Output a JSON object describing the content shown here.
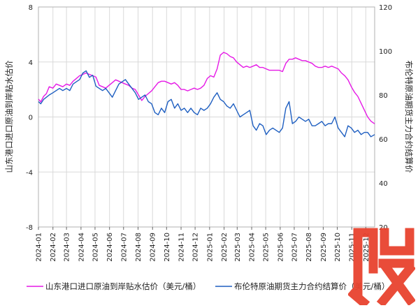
{
  "chart_data": {
    "type": "line",
    "title": "",
    "y_left": {
      "label": "山东港口进口原油到岸贴水估价",
      "range": [
        -8,
        8
      ],
      "ticks": [
        "8",
        "4",
        "0",
        "-4",
        "-8"
      ],
      "tick_values": [
        8,
        4,
        0,
        -4,
        -8
      ]
    },
    "y_right": {
      "label": "布伦特原油期货主力合约结算价",
      "range": [
        20,
        120
      ],
      "ticks": [
        "120",
        "100",
        "80",
        "60",
        "40",
        "20"
      ],
      "tick_values": [
        120,
        100,
        80,
        60,
        40,
        20
      ]
    },
    "x_ticks": [
      "2024-01",
      "2024-02",
      "2024-03",
      "2024-04",
      "2024-05",
      "2024-06",
      "2024-07",
      "2024-08",
      "2024-09",
      "2024-10",
      "2024-11",
      "2024-12",
      "2025-01",
      "2025-02",
      "2025-03",
      "2025-04",
      "2025-05",
      "2025-06",
      "2025-07",
      "2025-08",
      "2025-09",
      "2025-10",
      "2025-11",
      "2025-12"
    ],
    "x_range": [
      "2024-01",
      "2025-12-20"
    ],
    "grid": true,
    "legend_position": "bottom",
    "series": [
      {
        "name": "山东港口进口原油到岸贴水估价（美元/桶）",
        "axis": "left",
        "color": "#e619e6",
        "points": [
          [
            "2024-01-01",
            1.3
          ],
          [
            "2024-01-06",
            1.1
          ],
          [
            "2024-01-12",
            1.5
          ],
          [
            "2024-01-18",
            1.7
          ],
          [
            "2024-01-24",
            2.2
          ],
          [
            "2024-02-01",
            2.1
          ],
          [
            "2024-02-08",
            2.4
          ],
          [
            "2024-02-15",
            2.3
          ],
          [
            "2024-02-22",
            2.2
          ],
          [
            "2024-03-01",
            2.4
          ],
          [
            "2024-03-08",
            2.3
          ],
          [
            "2024-03-15",
            2.6
          ],
          [
            "2024-03-22",
            2.8
          ],
          [
            "2024-03-29",
            3.0
          ],
          [
            "2024-04-05",
            3.1
          ],
          [
            "2024-04-12",
            3.2
          ],
          [
            "2024-04-19",
            3.1
          ],
          [
            "2024-04-26",
            3.0
          ],
          [
            "2024-05-03",
            2.9
          ],
          [
            "2024-05-10",
            2.3
          ],
          [
            "2024-05-17",
            2.2
          ],
          [
            "2024-05-24",
            2.1
          ],
          [
            "2024-05-31",
            2.3
          ],
          [
            "2024-06-07",
            2.5
          ],
          [
            "2024-06-14",
            2.7
          ],
          [
            "2024-06-21",
            2.6
          ],
          [
            "2024-06-28",
            2.5
          ],
          [
            "2024-07-05",
            2.4
          ],
          [
            "2024-07-12",
            2.3
          ],
          [
            "2024-07-19",
            2.1
          ],
          [
            "2024-07-26",
            2.0
          ],
          [
            "2024-08-02",
            1.6
          ],
          [
            "2024-08-09",
            1.2
          ],
          [
            "2024-08-16",
            1.5
          ],
          [
            "2024-08-23",
            1.7
          ],
          [
            "2024-08-30",
            1.9
          ],
          [
            "2024-09-06",
            2.2
          ],
          [
            "2024-09-13",
            2.5
          ],
          [
            "2024-09-20",
            2.6
          ],
          [
            "2024-09-27",
            2.6
          ],
          [
            "2024-10-04",
            2.5
          ],
          [
            "2024-10-11",
            2.4
          ],
          [
            "2024-10-18",
            2.5
          ],
          [
            "2024-10-25",
            2.3
          ],
          [
            "2024-11-01",
            2.0
          ],
          [
            "2024-11-08",
            2.0
          ],
          [
            "2024-11-15",
            1.9
          ],
          [
            "2024-11-22",
            2.0
          ],
          [
            "2024-11-29",
            2.1
          ],
          [
            "2024-12-06",
            2.0
          ],
          [
            "2024-12-13",
            2.1
          ],
          [
            "2024-12-20",
            2.3
          ],
          [
            "2024-12-27",
            2.8
          ],
          [
            "2025-01-03",
            3.0
          ],
          [
            "2025-01-10",
            2.9
          ],
          [
            "2025-01-17",
            3.5
          ],
          [
            "2025-01-24",
            4.5
          ],
          [
            "2025-01-31",
            4.7
          ],
          [
            "2025-02-07",
            4.6
          ],
          [
            "2025-02-14",
            4.4
          ],
          [
            "2025-02-21",
            4.3
          ],
          [
            "2025-02-28",
            4.0
          ],
          [
            "2025-03-07",
            3.8
          ],
          [
            "2025-03-14",
            3.6
          ],
          [
            "2025-03-21",
            3.7
          ],
          [
            "2025-03-28",
            3.6
          ],
          [
            "2025-04-04",
            3.7
          ],
          [
            "2025-04-11",
            3.8
          ],
          [
            "2025-04-18",
            3.6
          ],
          [
            "2025-04-25",
            3.6
          ],
          [
            "2025-05-02",
            3.5
          ],
          [
            "2025-05-09",
            3.4
          ],
          [
            "2025-05-16",
            3.4
          ],
          [
            "2025-05-23",
            3.4
          ],
          [
            "2025-05-30",
            3.4
          ],
          [
            "2025-06-06",
            3.3
          ],
          [
            "2025-06-13",
            3.9
          ],
          [
            "2025-06-20",
            4.2
          ],
          [
            "2025-06-27",
            4.2
          ],
          [
            "2025-07-04",
            4.3
          ],
          [
            "2025-07-11",
            4.2
          ],
          [
            "2025-07-18",
            4.1
          ],
          [
            "2025-07-25",
            4.1
          ],
          [
            "2025-08-01",
            4.0
          ],
          [
            "2025-08-08",
            3.9
          ],
          [
            "2025-08-15",
            3.7
          ],
          [
            "2025-08-22",
            3.6
          ],
          [
            "2025-08-29",
            3.6
          ],
          [
            "2025-09-05",
            3.7
          ],
          [
            "2025-09-12",
            3.6
          ],
          [
            "2025-09-19",
            3.7
          ],
          [
            "2025-09-26",
            3.6
          ],
          [
            "2025-10-03",
            3.5
          ],
          [
            "2025-10-10",
            3.2
          ],
          [
            "2025-10-17",
            3.0
          ],
          [
            "2025-10-24",
            2.7
          ],
          [
            "2025-10-31",
            2.2
          ],
          [
            "2025-11-07",
            1.8
          ],
          [
            "2025-11-14",
            1.5
          ],
          [
            "2025-11-21",
            1.0
          ],
          [
            "2025-11-28",
            0.5
          ],
          [
            "2025-12-05",
            0.0
          ],
          [
            "2025-12-12",
            -0.3
          ],
          [
            "2025-12-20",
            -0.5
          ]
        ]
      },
      {
        "name": "布伦特原油期货主力合约结算价（美元/桶）",
        "axis": "right",
        "color": "#1f5fc1",
        "points": [
          [
            "2024-01-01",
            77
          ],
          [
            "2024-01-06",
            76
          ],
          [
            "2024-01-12",
            78
          ],
          [
            "2024-01-18",
            79
          ],
          [
            "2024-01-24",
            80
          ],
          [
            "2024-02-01",
            81
          ],
          [
            "2024-02-08",
            82
          ],
          [
            "2024-02-15",
            83
          ],
          [
            "2024-02-22",
            82
          ],
          [
            "2024-03-01",
            83
          ],
          [
            "2024-03-08",
            82
          ],
          [
            "2024-03-15",
            85
          ],
          [
            "2024-03-22",
            86
          ],
          [
            "2024-03-29",
            87
          ],
          [
            "2024-04-05",
            90
          ],
          [
            "2024-04-12",
            91
          ],
          [
            "2024-04-19",
            88
          ],
          [
            "2024-04-26",
            89
          ],
          [
            "2024-05-03",
            84
          ],
          [
            "2024-05-10",
            83
          ],
          [
            "2024-05-17",
            82
          ],
          [
            "2024-05-24",
            83
          ],
          [
            "2024-05-31",
            81
          ],
          [
            "2024-06-07",
            79
          ],
          [
            "2024-06-14",
            82
          ],
          [
            "2024-06-21",
            85
          ],
          [
            "2024-06-28",
            86
          ],
          [
            "2024-07-05",
            87
          ],
          [
            "2024-07-12",
            85
          ],
          [
            "2024-07-19",
            83
          ],
          [
            "2024-07-26",
            81
          ],
          [
            "2024-08-02",
            78
          ],
          [
            "2024-08-09",
            79
          ],
          [
            "2024-08-16",
            80
          ],
          [
            "2024-08-23",
            77
          ],
          [
            "2024-08-30",
            76
          ],
          [
            "2024-09-06",
            72
          ],
          [
            "2024-09-13",
            71
          ],
          [
            "2024-09-20",
            74
          ],
          [
            "2024-09-27",
            72
          ],
          [
            "2024-10-04",
            77
          ],
          [
            "2024-10-11",
            78
          ],
          [
            "2024-10-18",
            74
          ],
          [
            "2024-10-25",
            76
          ],
          [
            "2024-11-01",
            73
          ],
          [
            "2024-11-08",
            74
          ],
          [
            "2024-11-15",
            72
          ],
          [
            "2024-11-22",
            74
          ],
          [
            "2024-11-29",
            72
          ],
          [
            "2024-12-06",
            71
          ],
          [
            "2024-12-13",
            74
          ],
          [
            "2024-12-20",
            73
          ],
          [
            "2024-12-27",
            74
          ],
          [
            "2025-01-03",
            76
          ],
          [
            "2025-01-10",
            79
          ],
          [
            "2025-01-17",
            81
          ],
          [
            "2025-01-24",
            78
          ],
          [
            "2025-01-31",
            77
          ],
          [
            "2025-02-07",
            75
          ],
          [
            "2025-02-14",
            74
          ],
          [
            "2025-02-21",
            76
          ],
          [
            "2025-02-28",
            73
          ],
          [
            "2025-03-07",
            70
          ],
          [
            "2025-03-14",
            71
          ],
          [
            "2025-03-21",
            72
          ],
          [
            "2025-03-28",
            73
          ],
          [
            "2025-04-04",
            66
          ],
          [
            "2025-04-11",
            64
          ],
          [
            "2025-04-18",
            67
          ],
          [
            "2025-04-25",
            66
          ],
          [
            "2025-05-02",
            62
          ],
          [
            "2025-05-09",
            64
          ],
          [
            "2025-05-16",
            65
          ],
          [
            "2025-05-23",
            64
          ],
          [
            "2025-05-30",
            63
          ],
          [
            "2025-06-06",
            65
          ],
          [
            "2025-06-13",
            74
          ],
          [
            "2025-06-20",
            77
          ],
          [
            "2025-06-27",
            67
          ],
          [
            "2025-07-04",
            68
          ],
          [
            "2025-07-11",
            70
          ],
          [
            "2025-07-18",
            69
          ],
          [
            "2025-07-25",
            68
          ],
          [
            "2025-08-01",
            69
          ],
          [
            "2025-08-08",
            66
          ],
          [
            "2025-08-15",
            66
          ],
          [
            "2025-08-22",
            67
          ],
          [
            "2025-08-29",
            68
          ],
          [
            "2025-09-05",
            66
          ],
          [
            "2025-09-12",
            67
          ],
          [
            "2025-09-19",
            67
          ],
          [
            "2025-09-26",
            70
          ],
          [
            "2025-10-03",
            65
          ],
          [
            "2025-10-10",
            63
          ],
          [
            "2025-10-17",
            61
          ],
          [
            "2025-10-24",
            66
          ],
          [
            "2025-10-31",
            65
          ],
          [
            "2025-11-07",
            63
          ],
          [
            "2025-11-14",
            64
          ],
          [
            "2025-11-21",
            62
          ],
          [
            "2025-11-28",
            63
          ],
          [
            "2025-12-05",
            63
          ],
          [
            "2025-12-12",
            61
          ],
          [
            "2025-12-20",
            62
          ]
        ]
      }
    ]
  },
  "watermark": {
    "color": "#e8432f"
  }
}
